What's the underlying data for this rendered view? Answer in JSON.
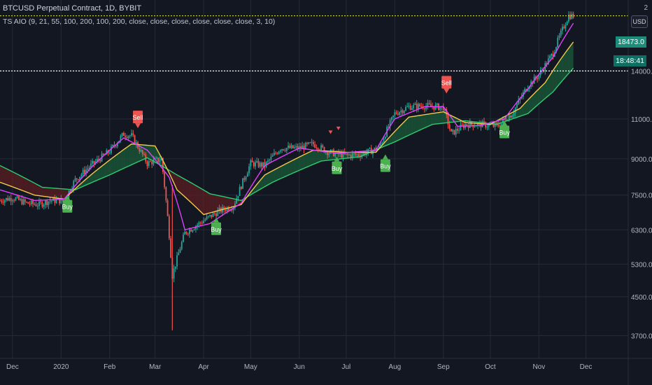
{
  "header": {
    "title": "BTCUSD Perpetual Contract, 1D, BYBIT",
    "indicator": "TS AIO (9, 21, 55, 100, 200, 100, 200, close, close, close, close, close, close, 3, 10)"
  },
  "price_scale": {
    "currency": "USD",
    "corner_tick": "2",
    "last_price": "18473.0",
    "countdown": "18:48:41"
  },
  "colors": {
    "background": "#131722",
    "grid": "#252a37",
    "candle_up": "#26a69a",
    "candle_down": "#ef5350",
    "ema_fast": "#e040fb",
    "ema_mid": "#f2c94c",
    "ema_slow": "#2ecc71",
    "cloud_bull": "#1b5e3a",
    "cloud_bear": "#5e1f23",
    "buy": "#4caf50",
    "sell": "#ef5350",
    "last_price_line": "#c9d633"
  },
  "chart_data": {
    "type": "line",
    "title": "BTCUSD Perpetual Contract, 1D, BYBIT",
    "xlabel": "",
    "ylabel": "",
    "y_scale": "log",
    "ylim": [
      3300,
      20000
    ],
    "x_range": [
      "2019-11-23",
      "2020-12-28"
    ],
    "x_ticks": [
      {
        "date": "2019-12-01",
        "label": "Dec"
      },
      {
        "date": "2020-01-01",
        "label": "2020"
      },
      {
        "date": "2020-02-01",
        "label": "Feb"
      },
      {
        "date": "2020-03-01",
        "label": "Mar"
      },
      {
        "date": "2020-04-01",
        "label": "Apr"
      },
      {
        "date": "2020-05-01",
        "label": "May"
      },
      {
        "date": "2020-06-01",
        "label": "Jun"
      },
      {
        "date": "2020-07-01",
        "label": "Jul"
      },
      {
        "date": "2020-08-01",
        "label": "Aug"
      },
      {
        "date": "2020-09-01",
        "label": "Sep"
      },
      {
        "date": "2020-10-01",
        "label": "Oct"
      },
      {
        "date": "2020-11-01",
        "label": "Nov"
      },
      {
        "date": "2020-12-01",
        "label": "Dec"
      }
    ],
    "y_ticks": [
      {
        "value": 14000,
        "label": "14000.0"
      },
      {
        "value": 11000,
        "label": "11000.0"
      },
      {
        "value": 9000,
        "label": "9000.0"
      },
      {
        "value": 7500,
        "label": "7500.0"
      },
      {
        "value": 6300,
        "label": "6300.0"
      },
      {
        "value": 5300,
        "label": "5300.0"
      },
      {
        "value": 4500,
        "label": "4500.0"
      },
      {
        "value": 3700,
        "label": "3700.0"
      }
    ],
    "horizontal_lines": [
      {
        "value": 18473,
        "style": "dotted",
        "color": "#c9d633"
      },
      {
        "value": 14000,
        "style": "dotted",
        "color": "#ffffff"
      }
    ],
    "series": [
      {
        "name": "close",
        "x": [
          "2019-11-23",
          "2019-12-01",
          "2019-12-10",
          "2019-12-18",
          "2019-12-25",
          "2020-01-03",
          "2020-01-10",
          "2020-01-20",
          "2020-02-01",
          "2020-02-10",
          "2020-02-15",
          "2020-02-25",
          "2020-03-05",
          "2020-03-12",
          "2020-03-20",
          "2020-04-01",
          "2020-04-10",
          "2020-04-20",
          "2020-05-01",
          "2020-05-10",
          "2020-05-20",
          "2020-06-01",
          "2020-06-10",
          "2020-06-20",
          "2020-07-01",
          "2020-07-10",
          "2020-07-22",
          "2020-08-01",
          "2020-08-10",
          "2020-08-20",
          "2020-09-01",
          "2020-09-06",
          "2020-09-15",
          "2020-09-25",
          "2020-10-05",
          "2020-10-15",
          "2020-10-25",
          "2020-11-01",
          "2020-11-10",
          "2020-11-20",
          "2020-11-23"
        ],
        "y": [
          7300,
          7400,
          7200,
          7150,
          7300,
          7300,
          8100,
          8700,
          9350,
          10200,
          10100,
          8800,
          9000,
          5000,
          6200,
          6600,
          6900,
          7100,
          8800,
          8700,
          9500,
          9500,
          9700,
          9300,
          9150,
          9200,
          9500,
          11300,
          11700,
          11750,
          11650,
          10200,
          10700,
          10700,
          10600,
          11300,
          13000,
          13700,
          15300,
          18500,
          18473
        ]
      },
      {
        "name": "EMA 9",
        "x": [
          "2019-11-23",
          "2019-12-15",
          "2020-01-03",
          "2020-01-20",
          "2020-02-10",
          "2020-02-25",
          "2020-03-10",
          "2020-03-20",
          "2020-04-05",
          "2020-04-25",
          "2020-05-10",
          "2020-06-01",
          "2020-06-25",
          "2020-07-20",
          "2020-08-01",
          "2020-08-20",
          "2020-09-01",
          "2020-09-10",
          "2020-09-25",
          "2020-10-10",
          "2020-10-25",
          "2020-11-10",
          "2020-11-23"
        ],
        "y": [
          7700,
          7300,
          7350,
          8600,
          10000,
          9400,
          8200,
          6300,
          6500,
          7200,
          8700,
          9500,
          9250,
          9400,
          11000,
          11700,
          11700,
          10600,
          10650,
          11000,
          12800,
          15000,
          17800
        ]
      },
      {
        "name": "EMA 21",
        "x": [
          "2019-11-23",
          "2019-12-15",
          "2020-01-03",
          "2020-01-20",
          "2020-02-15",
          "2020-03-01",
          "2020-03-15",
          "2020-04-01",
          "2020-04-25",
          "2020-05-10",
          "2020-06-10",
          "2020-07-01",
          "2020-07-20",
          "2020-08-10",
          "2020-09-01",
          "2020-09-15",
          "2020-10-01",
          "2020-10-20",
          "2020-11-05",
          "2020-11-23"
        ],
        "y": [
          8000,
          7500,
          7350,
          8300,
          9700,
          9600,
          7700,
          6800,
          7150,
          8300,
          9400,
          9300,
          9300,
          11100,
          11400,
          10800,
          10700,
          11600,
          13200,
          16200
        ]
      },
      {
        "name": "EMA 55",
        "x": [
          "2019-11-23",
          "2019-12-20",
          "2020-01-10",
          "2020-02-01",
          "2020-02-25",
          "2020-03-15",
          "2020-04-05",
          "2020-04-25",
          "2020-05-15",
          "2020-06-15",
          "2020-07-10",
          "2020-08-01",
          "2020-08-25",
          "2020-09-15",
          "2020-10-05",
          "2020-10-25",
          "2020-11-10",
          "2020-11-23"
        ],
        "y": [
          8700,
          7800,
          7700,
          8300,
          9050,
          8300,
          7550,
          7300,
          8000,
          8900,
          9100,
          9800,
          10700,
          10900,
          10700,
          11300,
          12600,
          14200
        ]
      }
    ],
    "annotations": [
      {
        "type": "buy",
        "label": "Buy",
        "date": "2020-01-05",
        "price": 7500
      },
      {
        "type": "sell",
        "label": "Sell",
        "date": "2020-02-19",
        "price": 10500
      },
      {
        "type": "buy",
        "label": "Buy",
        "date": "2020-04-09",
        "price": 6700
      },
      {
        "type": "buy",
        "label": "Buy",
        "date": "2020-06-25",
        "price": 9100
      },
      {
        "type": "buy",
        "label": "Buy",
        "date": "2020-07-26",
        "price": 9200
      },
      {
        "type": "sell",
        "label": "Sell",
        "date": "2020-09-03",
        "price": 12500
      },
      {
        "type": "buy",
        "label": "Buy",
        "date": "2020-10-10",
        "price": 10900
      },
      {
        "type": "sell-arrow",
        "label": "",
        "date": "2020-06-21",
        "price": 10200
      },
      {
        "type": "sell-arrow",
        "label": "",
        "date": "2020-06-26",
        "price": 10400
      }
    ]
  }
}
